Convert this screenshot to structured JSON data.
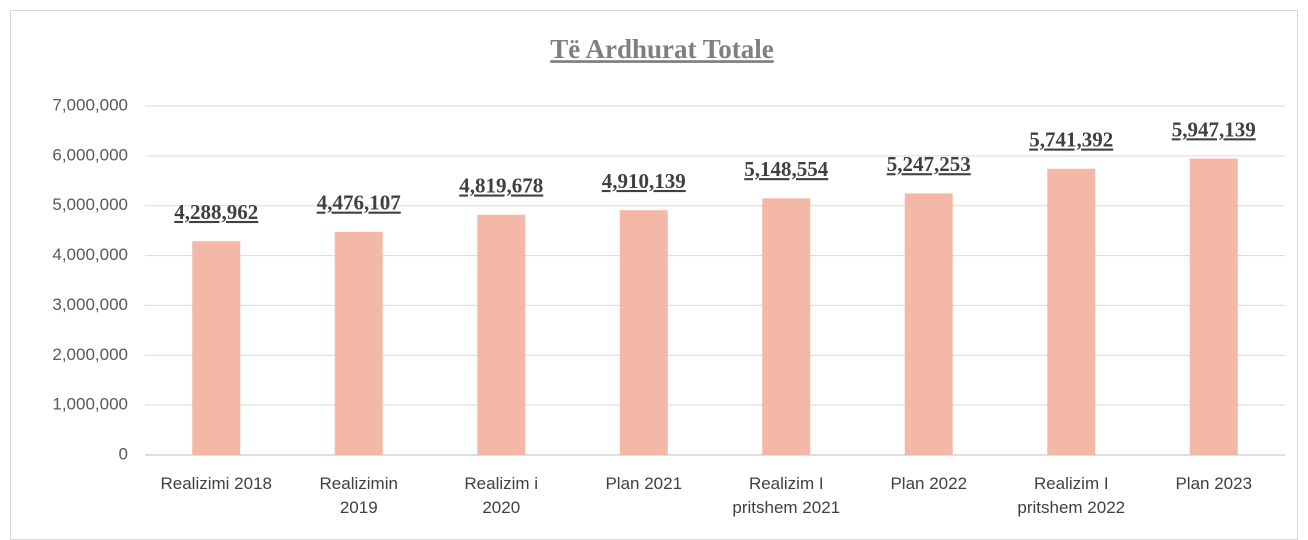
{
  "chart_data": {
    "type": "bar",
    "title": "Të Ardhurat Totale",
    "categories": [
      "Realizimi 2018",
      "Realizimin\n2019",
      "Realizim i\n2020",
      "Plan 2021",
      "Realizim I\npritshem 2021",
      "Plan 2022",
      "Realizim I\npritshem 2022",
      "Plan 2023"
    ],
    "values": [
      4288962,
      4476107,
      4819678,
      4910139,
      5148554,
      5247253,
      5741392,
      5947139
    ],
    "value_labels": [
      "4,288,962",
      "4,476,107",
      "4,819,678",
      "4,910,139",
      "5,148,554",
      "5,247,253",
      "5,741,392",
      "5,947,139"
    ],
    "color": "#f4b8a6",
    "ylim": [
      0,
      7000000
    ],
    "yticks": [
      0,
      {
        "value": 1000000,
        "label": "1,000,000"
      },
      {
        "value": 2000000,
        "label": "2,000,000"
      },
      {
        "value": 3000000,
        "label": "3,000,000"
      },
      {
        "value": 4000000,
        "label": "4,000,000"
      },
      {
        "value": 5000000,
        "label": "5,000,000"
      },
      {
        "value": 6000000,
        "label": "6,000,000"
      },
      {
        "value": 7000000,
        "label": "7,000,000"
      }
    ],
    "grid": true
  }
}
